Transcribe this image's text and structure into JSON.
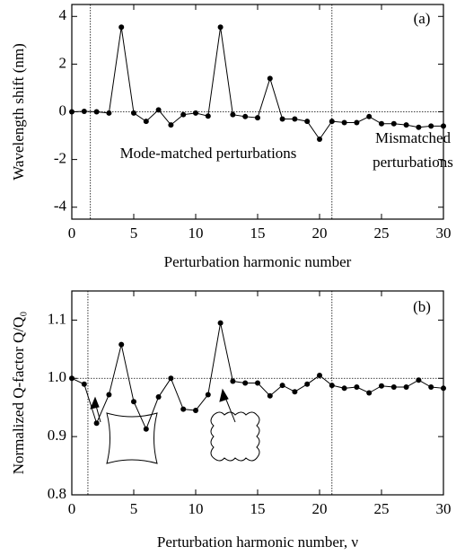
{
  "chart_data": [
    {
      "type": "line",
      "panel_label": "(a)",
      "x_label": "Perturbation harmonic number",
      "y_label": "Wavelength shift (nm)",
      "annotations": [
        "Mode-matched perturbations",
        "Mismatched",
        "perturbations"
      ],
      "x": [
        0,
        1,
        2,
        3,
        4,
        5,
        6,
        7,
        8,
        9,
        10,
        11,
        12,
        13,
        14,
        15,
        16,
        17,
        18,
        19,
        20,
        21,
        22,
        23,
        24,
        25,
        26,
        27,
        28,
        29,
        30
      ],
      "series": [
        {
          "color": "#000000",
          "values": [
            0,
            0.02,
            0,
            -0.05,
            3.55,
            -0.05,
            -0.4,
            0.08,
            -0.55,
            -0.12,
            -0.05,
            -0.18,
            3.55,
            -0.12,
            -0.2,
            -0.25,
            1.4,
            -0.3,
            -0.3,
            -0.4,
            -1.15,
            -0.4,
            -0.45,
            -0.45,
            -0.2,
            -0.5,
            -0.5,
            -0.55,
            -0.65,
            -0.6,
            -0.6
          ]
        }
      ],
      "xlim": [
        0,
        30
      ],
      "ylim": [
        -4.5,
        4.5
      ],
      "xticks": [
        0,
        5,
        10,
        15,
        20,
        25,
        30
      ],
      "yticks": [
        -4,
        -2,
        0,
        2,
        4
      ],
      "vlines": [
        1.5,
        21
      ],
      "hlines": [
        0
      ]
    },
    {
      "type": "line",
      "panel_label": "(b)",
      "x_label": "Perturbation harmonic number, ν",
      "y_label": "Normalized Q-factor Q/Q₀",
      "annotations": [],
      "x": [
        0,
        1,
        2,
        3,
        4,
        5,
        6,
        7,
        8,
        9,
        10,
        11,
        12,
        13,
        14,
        15,
        16,
        17,
        18,
        19,
        20,
        21,
        22,
        23,
        24,
        25,
        26,
        27,
        28,
        29,
        30
      ],
      "series": [
        {
          "color": "#000000",
          "values": [
            1.0,
            0.99,
            0.923,
            0.972,
            1.058,
            0.96,
            0.913,
            0.968,
            1.0,
            0.947,
            0.945,
            0.972,
            1.095,
            0.995,
            0.992,
            0.992,
            0.97,
            0.988,
            0.977,
            0.99,
            1.005,
            0.988,
            0.983,
            0.985,
            0.975,
            0.987,
            0.985,
            0.985,
            0.997,
            0.985,
            0.983
          ]
        }
      ],
      "xlim": [
        0,
        30
      ],
      "ylim": [
        0.8,
        1.15
      ],
      "xticks": [
        0,
        5,
        10,
        15,
        20,
        25,
        30
      ],
      "yticks": [
        0.8,
        0.9,
        {
          "value": 1.0,
          "label": "1.0"
        },
        1.1
      ],
      "vlines": [
        1.3,
        21
      ],
      "hlines": [
        1.0
      ]
    }
  ]
}
